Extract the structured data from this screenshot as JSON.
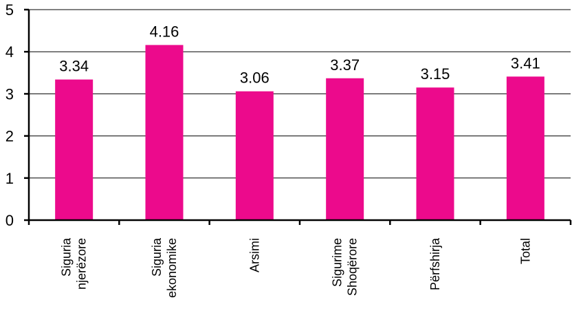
{
  "chart_data": {
    "type": "bar",
    "categories": [
      [
        "Siguria",
        "njerëzore"
      ],
      [
        "Siguria",
        "ekonomike"
      ],
      [
        "Arsimi"
      ],
      [
        "Sigurime",
        "Shoqërore"
      ],
      [
        "Përfshirja"
      ],
      [
        "Total"
      ]
    ],
    "values": [
      3.34,
      4.16,
      3.06,
      3.37,
      3.15,
      3.41
    ],
    "value_labels": [
      "3.34",
      "4.16",
      "3.06",
      "3.37",
      "3.15",
      "3.41"
    ],
    "yticks": [
      0,
      1,
      2,
      3,
      4,
      5
    ],
    "ylim": [
      0,
      5
    ],
    "grid": true,
    "bar_color": "#EC0A8C",
    "title": "",
    "xlabel": "",
    "ylabel": ""
  }
}
